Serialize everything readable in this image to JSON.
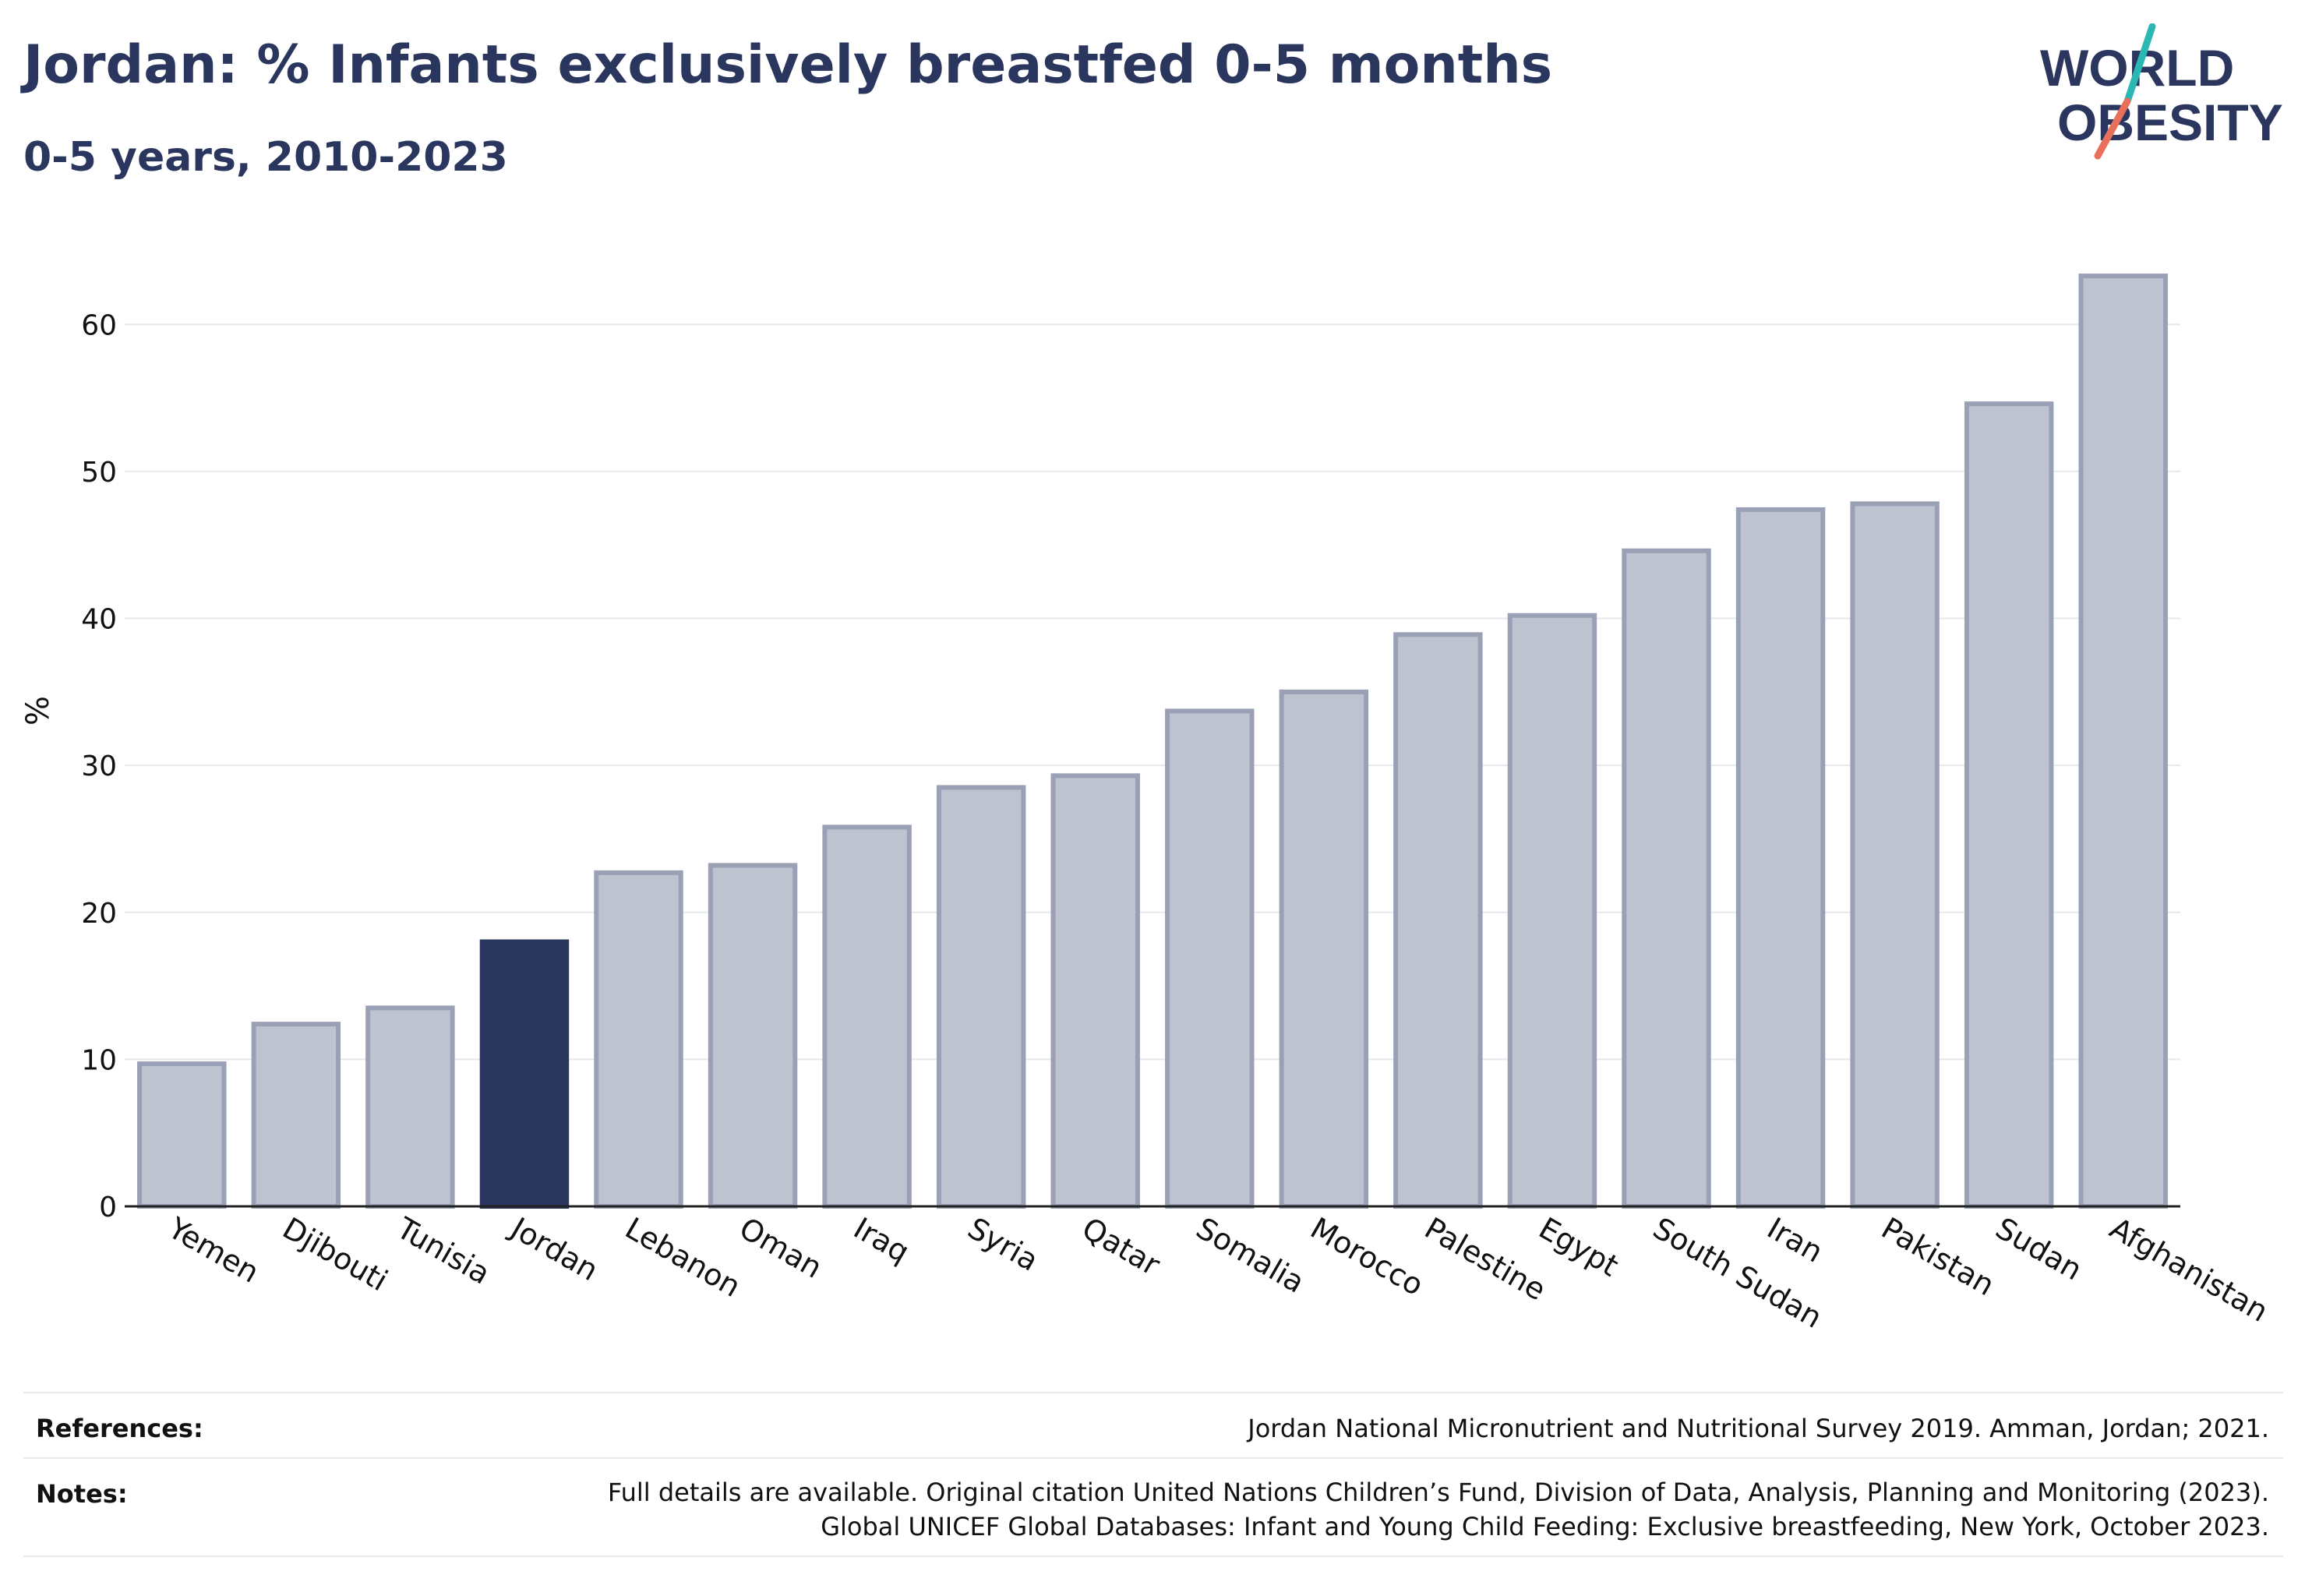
{
  "title": "Jordan: % Infants exclusively breastfed 0-5 months",
  "subtitle": "0-5 years, 2010-2023",
  "logo": {
    "line1": "WORLD",
    "line2": "OBESITY",
    "icon": "slash-logo-mark"
  },
  "colors": {
    "highlight": "#2a365e",
    "bar_fill": "#bfc3d0",
    "bar_stroke": "#9aa1b6",
    "grid": "#e6e8ee",
    "axis": "#222222"
  },
  "chart_data": {
    "type": "bar",
    "ylabel": "%",
    "xlabel": "",
    "ylim": [
      0,
      65
    ],
    "yticks": [
      0,
      10,
      20,
      30,
      40,
      50,
      60
    ],
    "grid": true,
    "highlight": "Jordan",
    "categories": [
      "Yemen",
      "Djibouti",
      "Tunisia",
      "Jordan",
      "Lebanon",
      "Oman",
      "Iraq",
      "Syria",
      "Qatar",
      "Somalia",
      "Morocco",
      "Palestine",
      "Egypt",
      "South Sudan",
      "Iran",
      "Pakistan",
      "Sudan",
      "Afghanistan"
    ],
    "values": [
      9.7,
      12.4,
      13.5,
      18.0,
      22.7,
      23.2,
      25.8,
      28.5,
      29.3,
      33.7,
      35.0,
      38.9,
      40.2,
      44.6,
      47.4,
      47.8,
      54.6,
      63.3
    ]
  },
  "footer": {
    "references_label": "References:",
    "references_text": "Jordan National Micronutrient and Nutritional Survey 2019. Amman, Jordan; 2021.",
    "notes_label": "Notes:",
    "notes_line1": "Full details are available. Original citation United Nations Children’s Fund, Division of Data, Analysis, Planning and Monitoring (2023).",
    "notes_line2": "Global UNICEF Global Databases: Infant and Young Child Feeding: Exclusive breastfeeding, New York, October 2023."
  }
}
